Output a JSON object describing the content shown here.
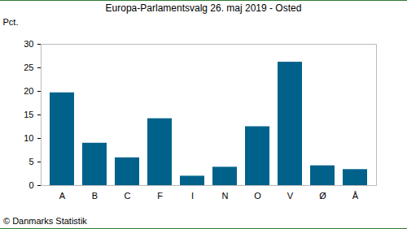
{
  "chart_data": {
    "type": "bar",
    "title": "Europa-Parlamentsvalg 26. maj 2019 - Osted",
    "y_label": "Pct.",
    "caption": "© Danmarks Statistik",
    "categories": [
      "A",
      "B",
      "C",
      "F",
      "I",
      "N",
      "O",
      "V",
      "Ø",
      "Å"
    ],
    "values": [
      19.7,
      9.0,
      5.9,
      14.2,
      2.0,
      3.9,
      12.5,
      26.2,
      4.2,
      3.4
    ],
    "color": "#00628b",
    "ylim": [
      0,
      30
    ],
    "yticks": [
      0,
      5,
      10,
      15,
      20,
      25,
      30
    ],
    "grid": false
  }
}
